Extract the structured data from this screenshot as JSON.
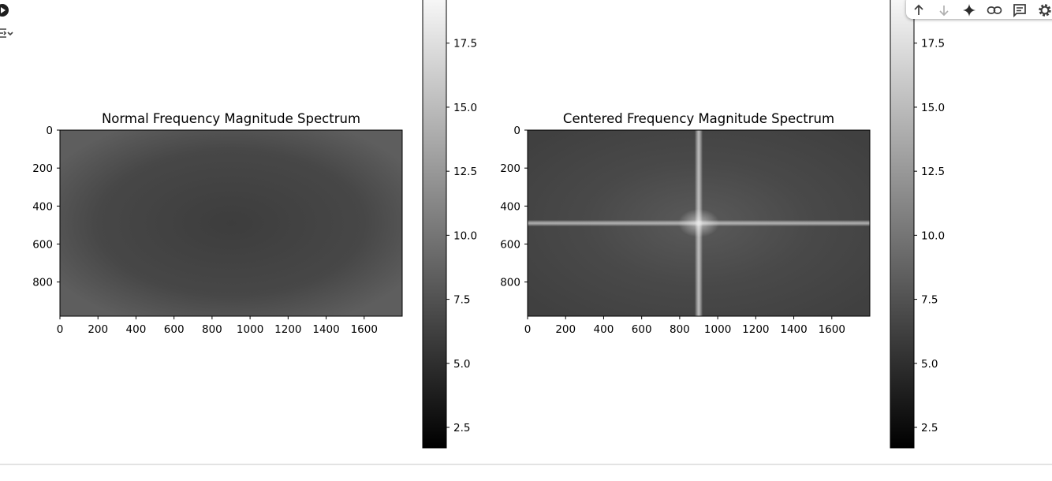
{
  "cell_controls": {
    "run_icon": "play-circle-icon",
    "output_icon": "output-toggle-icon"
  },
  "toolbar": {
    "icons": [
      "arrow-up-icon",
      "arrow-down-icon",
      "sparkle-icon",
      "link-icon",
      "comment-icon",
      "gear-icon"
    ]
  },
  "colors": {
    "colorbar_top": "#ffffff",
    "colorbar_bottom": "#000000",
    "spectrum_fill": "#4e4e4e",
    "spectrum_center": "#3a3a3a",
    "cross_line": "#c8c8c8"
  },
  "chart_data": [
    {
      "type": "heatmap",
      "title": "Normal Frequency Magnitude Spectrum",
      "xlabel": "",
      "ylabel": "",
      "xlim": [
        0,
        1800
      ],
      "ylim": [
        980,
        0
      ],
      "xticks": [
        0,
        200,
        400,
        600,
        800,
        1000,
        1200,
        1400,
        1600
      ],
      "yticks": [
        0,
        200,
        400,
        600,
        800
      ],
      "colormap": "gray",
      "colorbar": {
        "range": [
          1.7,
          19.8
        ],
        "ticks": [
          "2.5",
          "5.0",
          "7.5",
          "10.0",
          "12.5",
          "15.0",
          "17.5"
        ]
      }
    },
    {
      "type": "heatmap",
      "title": "Centered Frequency Magnitude Spectrum",
      "xlabel": "",
      "ylabel": "",
      "xlim": [
        0,
        1800
      ],
      "ylim": [
        980,
        0
      ],
      "xticks": [
        0,
        200,
        400,
        600,
        800,
        1000,
        1200,
        1400,
        1600
      ],
      "yticks": [
        0,
        200,
        400,
        600,
        800
      ],
      "colormap": "gray",
      "colorbar": {
        "range": [
          1.7,
          19.8
        ],
        "ticks": [
          "2.5",
          "5.0",
          "7.5",
          "10.0",
          "12.5",
          "15.0",
          "17.5"
        ]
      }
    }
  ]
}
